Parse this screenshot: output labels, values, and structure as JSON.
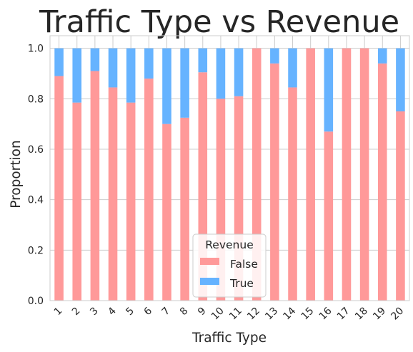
{
  "chart_data": {
    "type": "bar",
    "stacked": true,
    "title": "Traffic Type vs Revenue",
    "xlabel": "Traffic Type",
    "ylabel": "Proportion",
    "ylim": [
      0,
      1.05
    ],
    "yticks": [
      "0.0",
      "0.2",
      "0.4",
      "0.6",
      "0.8",
      "1.0"
    ],
    "grid": true,
    "legend": {
      "title": "Revenue",
      "placement": "lower-center"
    },
    "categories": [
      "1",
      "2",
      "3",
      "4",
      "5",
      "6",
      "7",
      "8",
      "9",
      "10",
      "11",
      "12",
      "13",
      "14",
      "15",
      "16",
      "17",
      "18",
      "19",
      "20"
    ],
    "series": [
      {
        "name": "False",
        "color": "#ff9999",
        "values": [
          0.89,
          0.785,
          0.91,
          0.845,
          0.785,
          0.88,
          0.7,
          0.725,
          0.905,
          0.8,
          0.81,
          1.0,
          0.94,
          0.845,
          1.0,
          0.67,
          1.0,
          1.0,
          0.94,
          0.75
        ]
      },
      {
        "name": "True",
        "color": "#66b3ff",
        "values": [
          0.11,
          0.215,
          0.09,
          0.155,
          0.215,
          0.12,
          0.3,
          0.275,
          0.095,
          0.2,
          0.19,
          0.0,
          0.06,
          0.155,
          0.0,
          0.33,
          0.0,
          0.0,
          0.06,
          0.25
        ]
      }
    ]
  }
}
